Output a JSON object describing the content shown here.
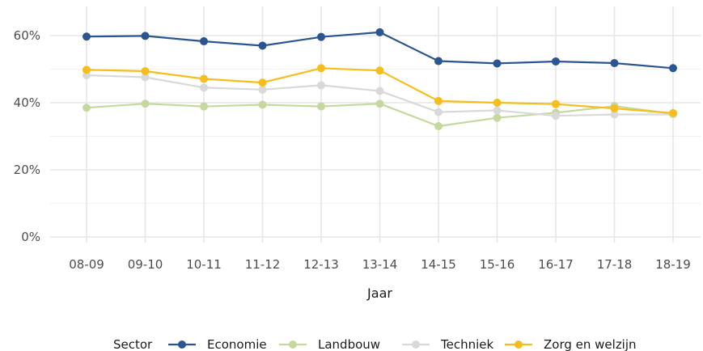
{
  "chart_data": {
    "type": "line",
    "xlabel": "Jaar",
    "ylabel": "",
    "categories": [
      "08-09",
      "09-10",
      "10-11",
      "11-12",
      "12-13",
      "13-14",
      "14-15",
      "15-16",
      "16-17",
      "17-18",
      "18-19"
    ],
    "ylim": [
      0,
      0.6
    ],
    "yticks": [
      0,
      0.2,
      0.4,
      0.6
    ],
    "ytick_labels": [
      "0%",
      "20%",
      "40%",
      "60%"
    ],
    "grid": true,
    "legend": {
      "title": "Sector",
      "position": "bottom"
    },
    "series": [
      {
        "name": "Economie",
        "color": "#2b5591",
        "values": [
          0.597,
          0.599,
          0.583,
          0.57,
          0.596,
          0.61,
          0.524,
          0.517,
          0.523,
          0.518,
          0.503
        ]
      },
      {
        "name": "Landbouw",
        "color": "#c5d99e",
        "values": [
          0.385,
          0.397,
          0.389,
          0.394,
          0.389,
          0.397,
          0.33,
          0.355,
          0.37,
          0.39,
          0.367
        ]
      },
      {
        "name": "Techniek",
        "color": "#d9d9d9",
        "values": [
          0.482,
          0.476,
          0.445,
          0.439,
          0.452,
          0.435,
          0.372,
          0.377,
          0.361,
          0.365,
          0.365
        ]
      },
      {
        "name": "Zorg en welzijn",
        "color": "#f5be1e",
        "values": [
          0.498,
          0.494,
          0.471,
          0.46,
          0.503,
          0.496,
          0.405,
          0.4,
          0.396,
          0.383,
          0.369
        ]
      }
    ]
  }
}
